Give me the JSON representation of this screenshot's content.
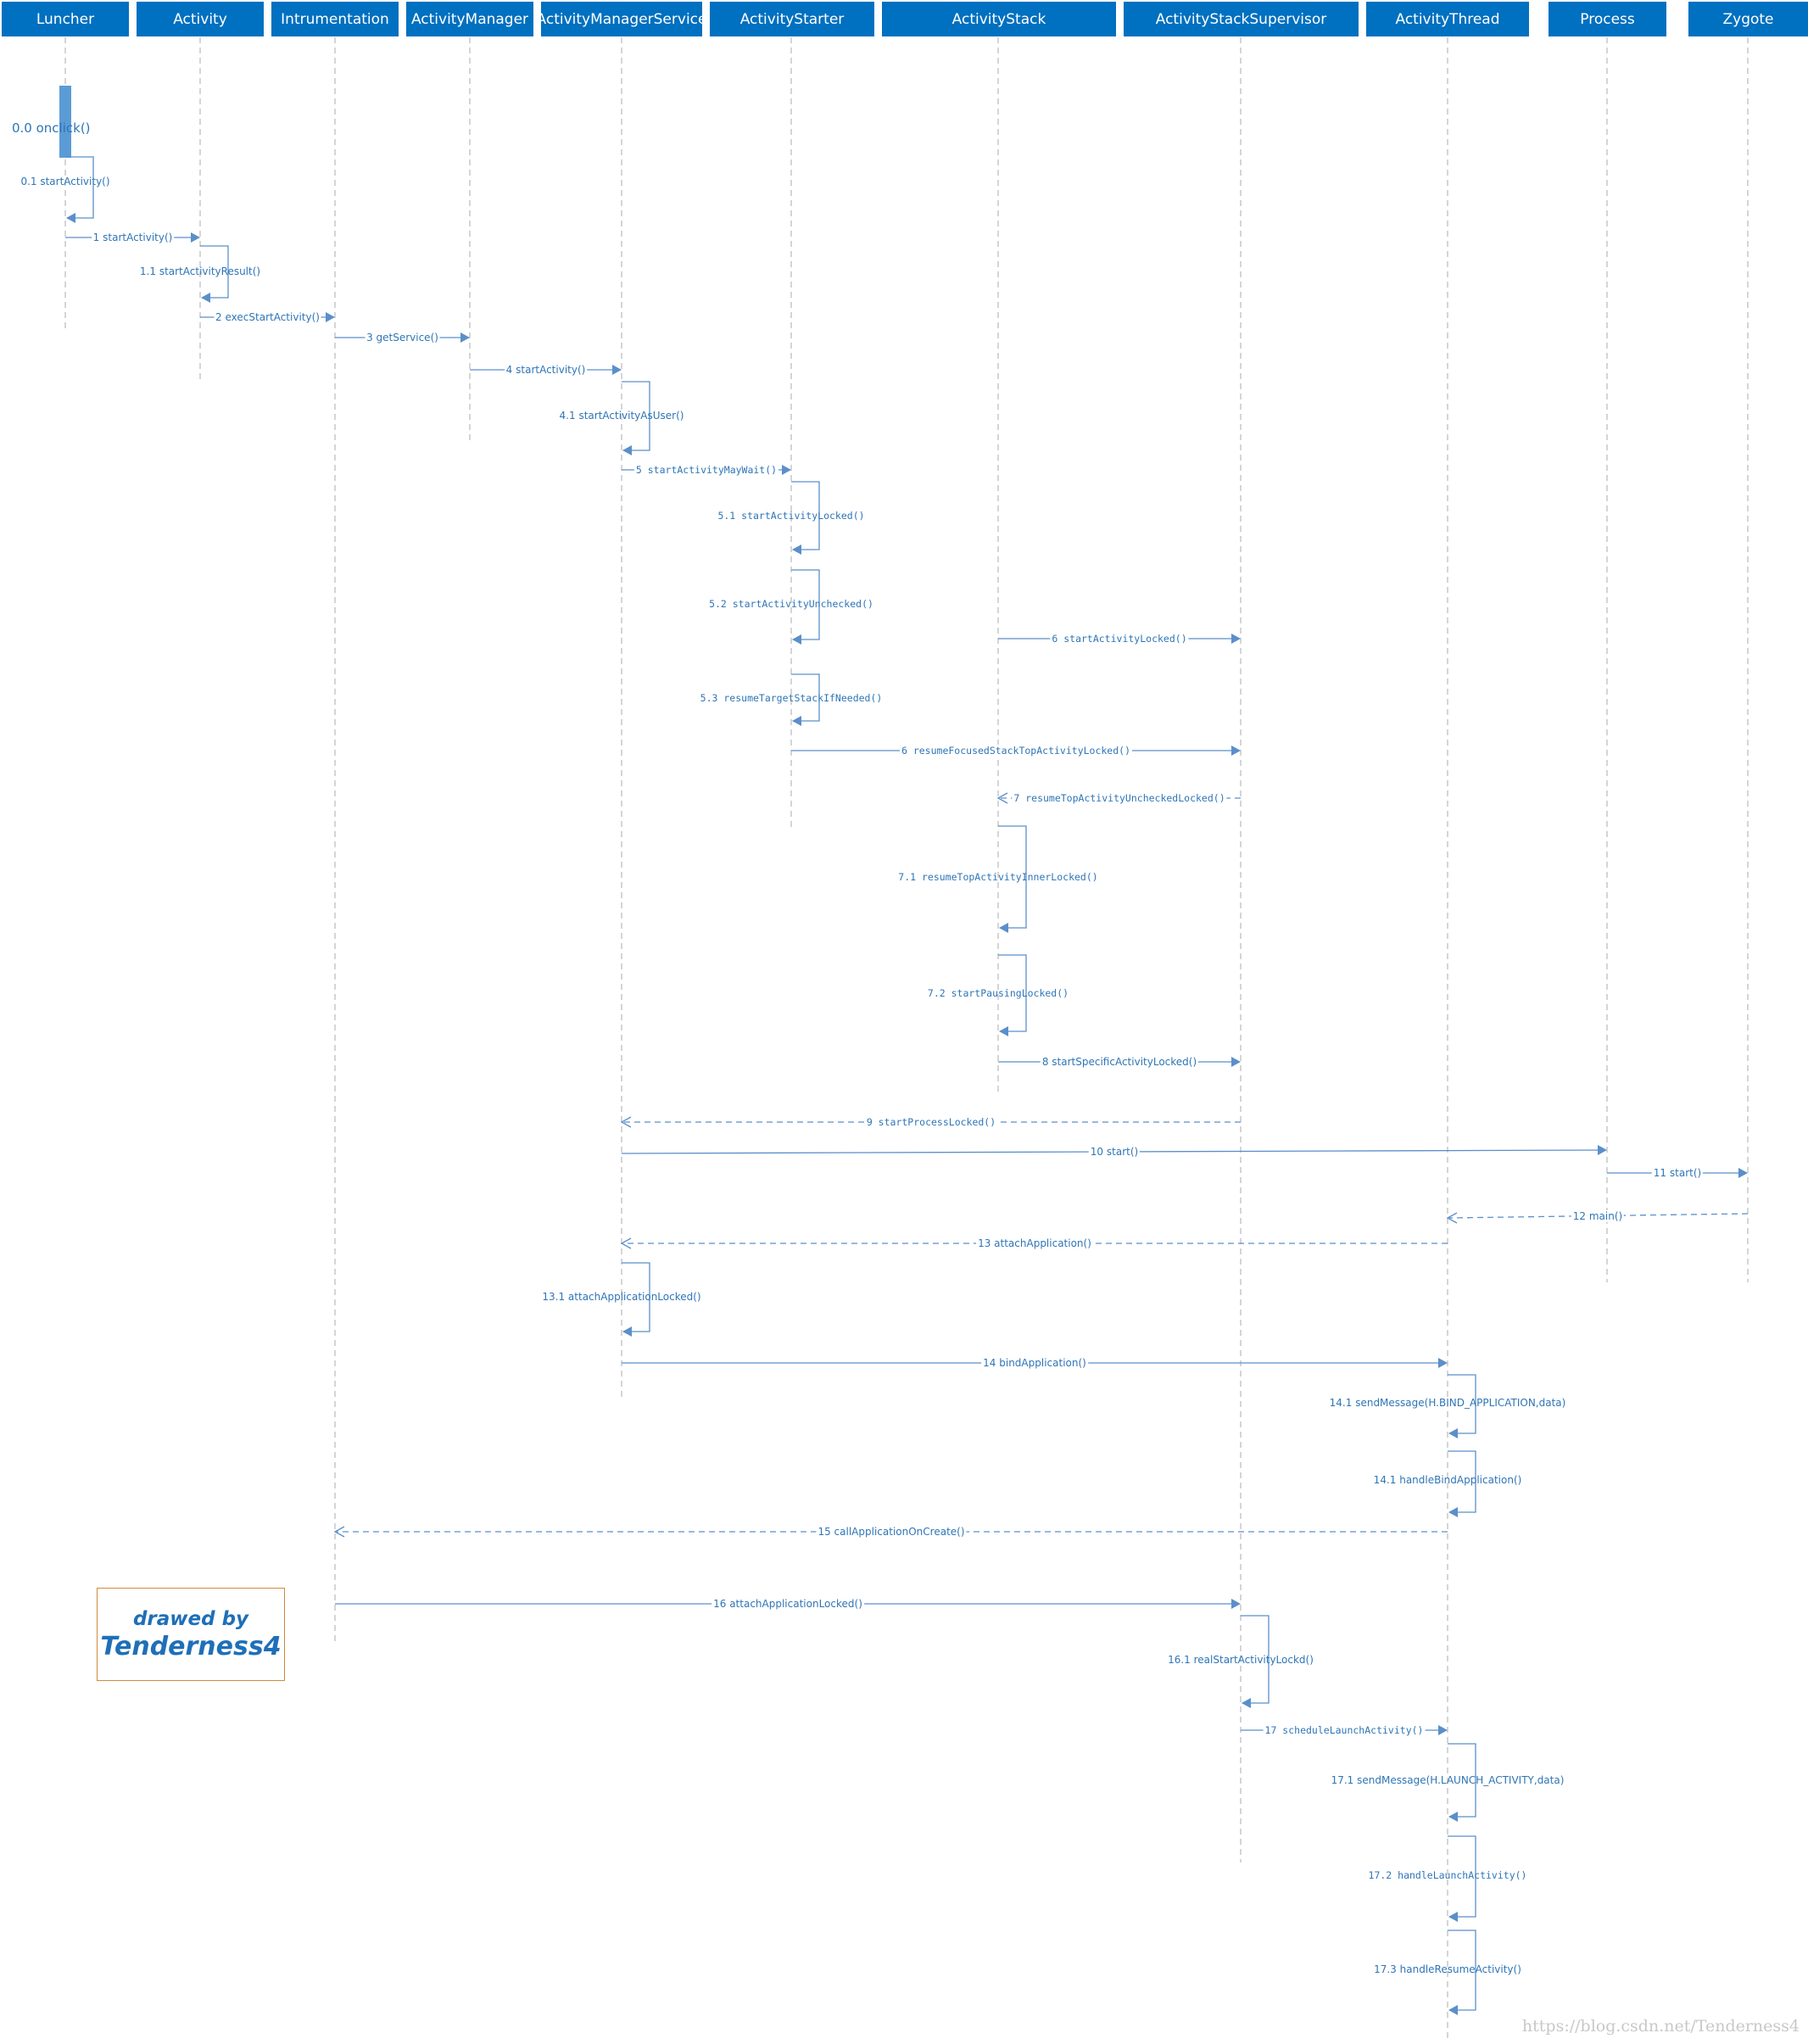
{
  "participants": [
    {
      "id": "Luncher",
      "label": "Luncher"
    },
    {
      "id": "Activity",
      "label": "Activity"
    },
    {
      "id": "Intrumentation",
      "label": "Intrumentation"
    },
    {
      "id": "ActivityManager",
      "label": "ActivityManager"
    },
    {
      "id": "ActivityManagerService",
      "label": "ActivityManagerService"
    },
    {
      "id": "ActivityStarter",
      "label": "ActivityStarter"
    },
    {
      "id": "ActivityStack",
      "label": "ActivityStack"
    },
    {
      "id": "ActivityStackSupervisor",
      "label": "ActivityStackSupervisor"
    },
    {
      "id": "ActivityThread",
      "label": "ActivityThread"
    },
    {
      "id": "Process",
      "label": "Process"
    },
    {
      "id": "Zygote",
      "label": "Zygote"
    }
  ],
  "activation_label": "0.0 onclick()",
  "messages": [
    {
      "label": "0.1 startActivity()",
      "from": "Luncher",
      "to": "Luncher",
      "kind": "self"
    },
    {
      "label": "1 startActivity()",
      "from": "Luncher",
      "to": "Activity",
      "kind": "sync"
    },
    {
      "label": "1.1 startActivityResult()",
      "from": "Activity",
      "to": "Activity",
      "kind": "self"
    },
    {
      "label": "2 execStartActivity()",
      "from": "Activity",
      "to": "Intrumentation",
      "kind": "sync"
    },
    {
      "label": "3 getService()",
      "from": "Intrumentation",
      "to": "ActivityManager",
      "kind": "sync"
    },
    {
      "label": "4 startActivity()",
      "from": "ActivityManager",
      "to": "ActivityManagerService",
      "kind": "sync"
    },
    {
      "label": "4.1 startActivityAsUser()",
      "from": "ActivityManagerService",
      "to": "ActivityManagerService",
      "kind": "self"
    },
    {
      "label": "5 startActivityMayWait()",
      "from": "ActivityManagerService",
      "to": "ActivityStarter",
      "kind": "sync"
    },
    {
      "label": "5.1 startActivityLocked()",
      "from": "ActivityStarter",
      "to": "ActivityStarter",
      "kind": "self"
    },
    {
      "label": "5.2 startActivityUnchecked()",
      "from": "ActivityStarter",
      "to": "ActivityStarter",
      "kind": "self"
    },
    {
      "label": "6 startActivityLocked()",
      "from": "ActivityStack",
      "to": "ActivityStackSupervisor",
      "kind": "sync"
    },
    {
      "label": "5.3 resumeTargetStackIfNeeded()",
      "from": "ActivityStarter",
      "to": "ActivityStarter",
      "kind": "self"
    },
    {
      "label": "6 resumeFocusedStackTopActivityLocked()",
      "from": "ActivityStarter",
      "to": "ActivityStackSupervisor",
      "kind": "sync"
    },
    {
      "label": "7 resumeTopActivityUncheckedLocked()",
      "from": "ActivityStackSupervisor",
      "to": "ActivityStack",
      "kind": "return"
    },
    {
      "label": "7.1 resumeTopActivityInnerLocked()",
      "from": "ActivityStack",
      "to": "ActivityStack",
      "kind": "self"
    },
    {
      "label": "7.2 startPausingLocked()",
      "from": "ActivityStack",
      "to": "ActivityStack",
      "kind": "self"
    },
    {
      "label": "8 startSpecificActivityLocked()",
      "from": "ActivityStack",
      "to": "ActivityStackSupervisor",
      "kind": "sync"
    },
    {
      "label": "9 startProcessLocked()",
      "from": "ActivityStackSupervisor",
      "to": "ActivityManagerService",
      "kind": "return"
    },
    {
      "label": "10 start()",
      "from": "ActivityManagerService",
      "to": "Process",
      "kind": "sync"
    },
    {
      "label": "11 start()",
      "from": "Process",
      "to": "Zygote",
      "kind": "sync"
    },
    {
      "label": "12 main()",
      "from": "Zygote",
      "to": "ActivityThread",
      "kind": "return"
    },
    {
      "label": "13 attachApplication()",
      "from": "ActivityThread",
      "to": "ActivityManagerService",
      "kind": "return"
    },
    {
      "label": "13.1 attachApplicationLocked()",
      "from": "ActivityManagerService",
      "to": "ActivityManagerService",
      "kind": "self"
    },
    {
      "label": "14 bindApplication()",
      "from": "ActivityManagerService",
      "to": "ActivityThread",
      "kind": "sync"
    },
    {
      "label": "14.1 sendMessage(H.BIND_APPLICATION,data)",
      "from": "ActivityThread",
      "to": "ActivityThread",
      "kind": "self"
    },
    {
      "label": "14.1 handleBindApplication()",
      "from": "ActivityThread",
      "to": "ActivityThread",
      "kind": "self"
    },
    {
      "label": "15 callApplicationOnCreate()",
      "from": "ActivityThread",
      "to": "Intrumentation",
      "kind": "return"
    },
    {
      "label": "16 attachApplicationLocked()",
      "from": "Intrumentation",
      "to": "ActivityStackSupervisor",
      "kind": "sync"
    },
    {
      "label": "16.1 realStartActivityLockd()",
      "from": "ActivityStackSupervisor",
      "to": "ActivityStackSupervisor",
      "kind": "self"
    },
    {
      "label": "17 scheduleLaunchActivity()",
      "from": "ActivityStackSupervisor",
      "to": "ActivityThread",
      "kind": "sync"
    },
    {
      "label": "17.1 sendMessage(H.LAUNCH_ACTIVITY,data)",
      "from": "ActivityThread",
      "to": "ActivityThread",
      "kind": "self"
    },
    {
      "label": "17.2 handleLaunchActivity()",
      "from": "ActivityThread",
      "to": "ActivityThread",
      "kind": "self"
    },
    {
      "label": "17.3 handleResumeActivity()",
      "from": "ActivityThread",
      "to": "ActivityThread",
      "kind": "self"
    }
  ],
  "credit": {
    "line1": "drawed by",
    "line2": "Tenderness4"
  },
  "watermark": "https://blog.csdn.net/Tenderness4",
  "colors": {
    "header": "#0070c0",
    "line": "#5b8fc9",
    "label": "#2e75b6",
    "activation": "#5b9bd5",
    "credit_border": "#d08b3e"
  }
}
